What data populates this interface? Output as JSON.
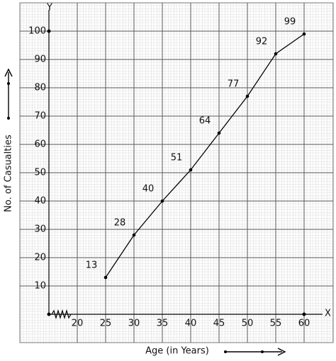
{
  "chart_data": {
    "type": "line",
    "x_label": "Age (in Years)",
    "y_label": "No. of Casualties",
    "x_axis_name": "X",
    "y_axis_name": "Y",
    "x": [
      25,
      30,
      35,
      40,
      45,
      50,
      55,
      60
    ],
    "series": [
      {
        "color": "#000000",
        "values": [
          13,
          28,
          40,
          51,
          64,
          77,
          92,
          99
        ]
      }
    ],
    "xlim": [
      15,
      63
    ],
    "ylim": [
      0,
      108
    ],
    "xticks": [
      20,
      25,
      30,
      35,
      40,
      45,
      50,
      55,
      60
    ],
    "yticks": [
      10,
      20,
      30,
      40,
      50,
      60,
      70,
      80,
      90,
      100
    ],
    "grid": true,
    "value_labels_shown": true
  }
}
